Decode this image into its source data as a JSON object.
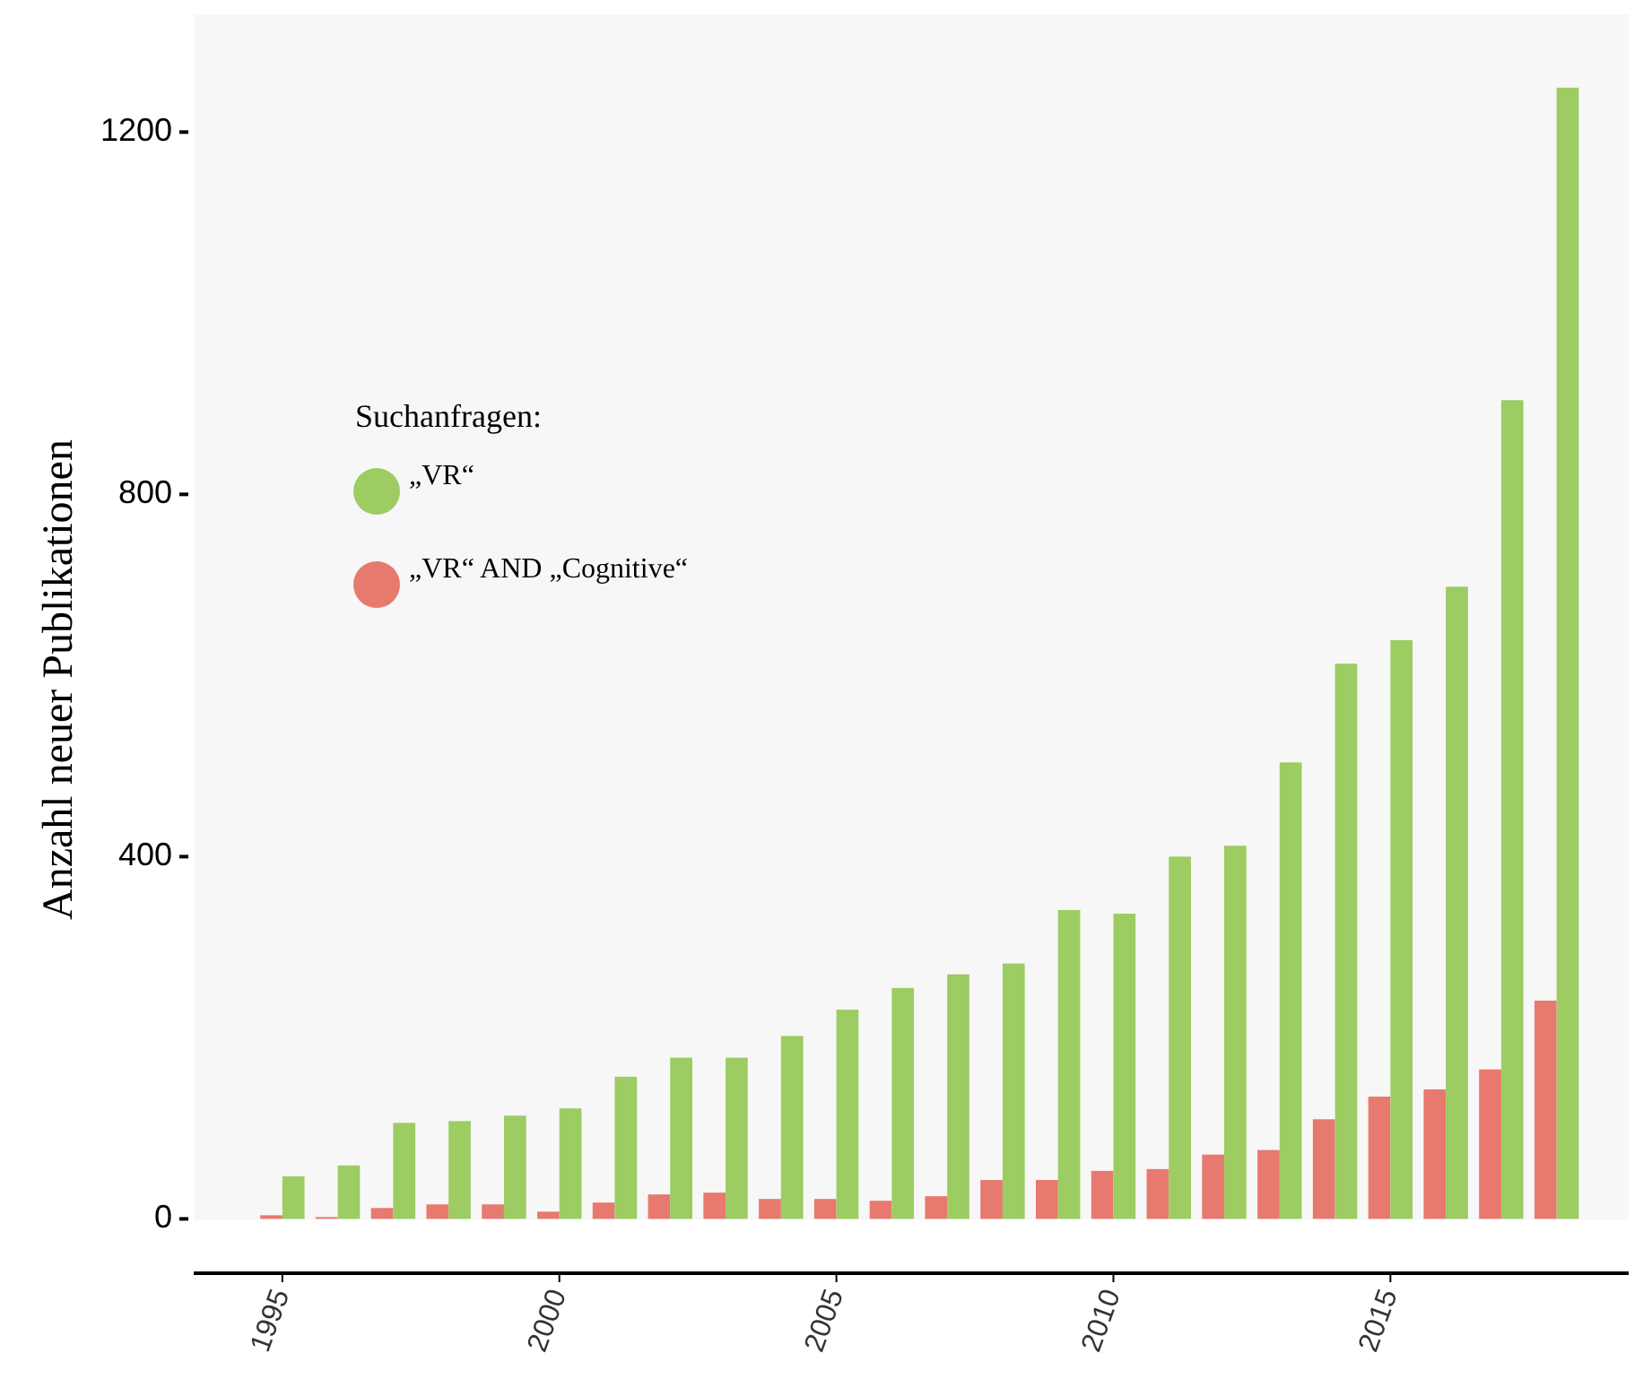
{
  "chart_data": {
    "type": "bar",
    "ylabel": "Anzahl neuer Publikationen",
    "legend_title": "Suchanfragen:",
    "legend": "top left",
    "grid": false,
    "x": [
      1995,
      1996,
      1997,
      1998,
      1999,
      2000,
      2001,
      2002,
      2003,
      2004,
      2005,
      2006,
      2007,
      2008,
      2009,
      2010,
      2011,
      2012,
      2013,
      2014,
      2015,
      2016,
      2017,
      2018
    ],
    "xlim": [
      1993.4,
      2019.3
    ],
    "xticks": [
      1995,
      2000,
      2005,
      2010,
      2015
    ],
    "ylim": [
      -60,
      1330
    ],
    "yticks": [
      0,
      400,
      800,
      1200
    ],
    "series": [
      {
        "name": "„VR“ AND „Cognitive“",
        "color": "#e8796f",
        "values": [
          4,
          2,
          12,
          16,
          16,
          8,
          18,
          27,
          29,
          22,
          22,
          20,
          25,
          43,
          43,
          53,
          55,
          71,
          76,
          110,
          135,
          143,
          165,
          241
        ]
      },
      {
        "name": "„VR“",
        "color": "#9ccc62",
        "values": [
          47,
          59,
          106,
          108,
          114,
          122,
          157,
          178,
          178,
          202,
          231,
          255,
          270,
          282,
          341,
          337,
          400,
          412,
          504,
          613,
          639,
          698,
          904,
          1249
        ]
      }
    ]
  }
}
